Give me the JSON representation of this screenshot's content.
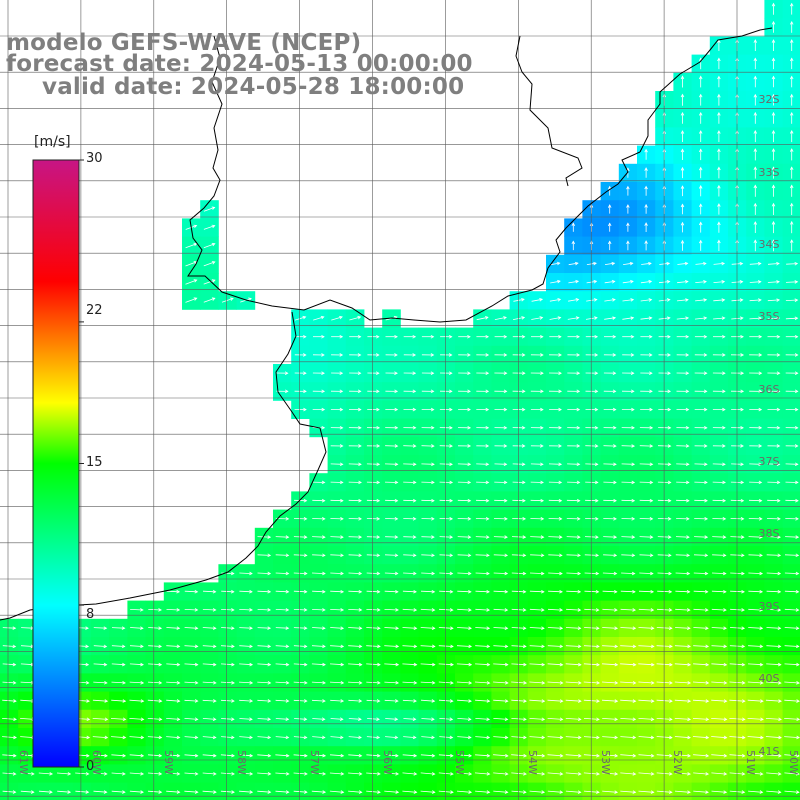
{
  "title": {
    "line1": "modelo GEFS-WAVE (NCEP)",
    "line2": "forecast date: 2024-05-13 00:00:00",
    "line3": "valid date: 2024-05-28 18:00:00"
  },
  "colorbar": {
    "unit": "[m/s]",
    "ticks": [
      "30",
      "22",
      "15",
      "8",
      "0"
    ],
    "tick_values": [
      30,
      22,
      15,
      8,
      0
    ],
    "min": 0,
    "max": 30,
    "colors": [
      "#0000ff",
      "#00ffff",
      "#00ff00",
      "#ffff00",
      "#ff0000",
      "#c71585"
    ],
    "color_stops": [
      0,
      8,
      15,
      18,
      24,
      30
    ]
  },
  "map": {
    "lat_labels": [
      "32S",
      "33S",
      "34S",
      "35S",
      "36S",
      "37S",
      "38S",
      "39S",
      "40S",
      "41S"
    ],
    "lon_labels": [
      "61W",
      "60W",
      "59W",
      "58W",
      "57W",
      "56W",
      "55W",
      "54W",
      "53W",
      "52W",
      "51W",
      "50W"
    ],
    "lon_range": [
      -61.5,
      -50
    ],
    "lat_range": [
      -41,
      -31
    ],
    "grid": true,
    "coastline_color": "#000000",
    "arrow_color": "#ffffff"
  }
}
